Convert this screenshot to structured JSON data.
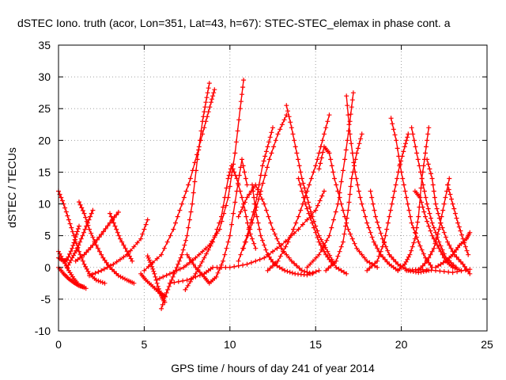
{
  "chart_data": {
    "type": "scatter",
    "title": "dSTEC Iono. truth (acor, Lon=351, Lat=43, h=67): STEC-STEC_elemax in phase cont. a",
    "xlabel": "GPS time / hours of day 241 of year 2014",
    "ylabel": "dSTEC  / TECUs",
    "xlim": [
      0,
      25
    ],
    "ylim": [
      -10,
      35
    ],
    "xticks": [
      0,
      5,
      10,
      15,
      20,
      25
    ],
    "yticks": [
      -10,
      -5,
      0,
      5,
      10,
      15,
      20,
      25,
      30,
      35
    ],
    "grid": true,
    "color": "#ff0000",
    "marker": "plus",
    "series": [
      {
        "points": [
          [
            0,
            12
          ],
          [
            0.3,
            10
          ],
          [
            0.6,
            7.5
          ],
          [
            0.9,
            5
          ],
          [
            1.2,
            2.5
          ],
          [
            1.5,
            0.5
          ],
          [
            1.8,
            -1
          ],
          [
            2.2,
            -2
          ],
          [
            2.7,
            -2.5
          ]
        ]
      },
      {
        "points": [
          [
            0,
            2.5
          ],
          [
            0.3,
            1
          ],
          [
            0.6,
            -0.5
          ],
          [
            0.9,
            -1.8
          ],
          [
            1.2,
            -2.8
          ],
          [
            1.6,
            -3.3
          ]
        ]
      },
      {
        "points": [
          [
            0,
            0
          ],
          [
            0.3,
            -1
          ],
          [
            0.6,
            -1.8
          ],
          [
            0.9,
            -2.4
          ],
          [
            1.2,
            -2.9
          ],
          [
            1.5,
            -3.1
          ]
        ]
      },
      {
        "points": [
          [
            0,
            1.5
          ],
          [
            0.3,
            1
          ],
          [
            0.5,
            1.2
          ],
          [
            0.8,
            3
          ],
          [
            1.0,
            4.8
          ],
          [
            1.2,
            6.5
          ]
        ]
      },
      {
        "points": [
          [
            0.5,
            0
          ],
          [
            0.8,
            1.5
          ],
          [
            1.1,
            3
          ],
          [
            1.4,
            5
          ],
          [
            1.7,
            7
          ],
          [
            2.0,
            9
          ]
        ]
      },
      {
        "points": [
          [
            1.2,
            10.3
          ],
          [
            1.5,
            8.5
          ],
          [
            1.8,
            6
          ],
          [
            2.2,
            3.5
          ],
          [
            2.6,
            1.5
          ],
          [
            3.0,
            0
          ],
          [
            3.5,
            -1.3
          ],
          [
            4.0,
            -2
          ],
          [
            4.4,
            -2.5
          ]
        ]
      },
      {
        "points": [
          [
            1.0,
            1
          ],
          [
            1.5,
            2
          ],
          [
            2.0,
            3.5
          ],
          [
            2.5,
            5.2
          ],
          [
            3.0,
            7
          ],
          [
            3.5,
            8.7
          ]
        ]
      },
      {
        "points": [
          [
            3.0,
            8.5
          ],
          [
            3.3,
            6.5
          ],
          [
            3.6,
            4.5
          ],
          [
            4.0,
            2.5
          ],
          [
            4.3,
            1
          ]
        ]
      },
      {
        "points": [
          [
            1.8,
            -1.3
          ],
          [
            2.5,
            -0.5
          ],
          [
            3.2,
            0.5
          ],
          [
            4.0,
            2
          ],
          [
            4.8,
            4.5
          ],
          [
            5.2,
            7.5
          ]
        ]
      },
      {
        "points": [
          [
            5.2,
            1.8
          ],
          [
            5.4,
            0.5
          ],
          [
            5.6,
            -1
          ],
          [
            5.8,
            -3
          ],
          [
            6.0,
            -4.5
          ],
          [
            6.2,
            -5.5
          ]
        ]
      },
      {
        "points": [
          [
            4.8,
            -1
          ],
          [
            5.1,
            -2
          ],
          [
            5.5,
            -3
          ],
          [
            5.9,
            -4
          ],
          [
            6.2,
            -4.5
          ]
        ]
      },
      {
        "points": [
          [
            6.0,
            -6.5
          ],
          [
            6.3,
            -4
          ],
          [
            6.6,
            -2
          ],
          [
            6.9,
            0
          ],
          [
            7.2,
            2
          ],
          [
            7.5,
            5
          ],
          [
            7.8,
            10
          ],
          [
            8.1,
            17
          ],
          [
            8.4,
            23
          ],
          [
            8.6,
            26
          ],
          [
            8.8,
            29
          ]
        ]
      },
      {
        "points": [
          [
            5.0,
            -0.5
          ],
          [
            6.0,
            2
          ],
          [
            6.7,
            6
          ],
          [
            7.2,
            10
          ],
          [
            7.7,
            14
          ],
          [
            8.2,
            19
          ],
          [
            8.6,
            23
          ],
          [
            8.9,
            26
          ],
          [
            9.1,
            28
          ]
        ]
      },
      {
        "points": [
          [
            5.7,
            -2
          ],
          [
            6.5,
            -1
          ],
          [
            7.3,
            0
          ],
          [
            8.0,
            1.5
          ],
          [
            8.8,
            3.5
          ],
          [
            9.4,
            6
          ],
          [
            9.9,
            11
          ],
          [
            10.3,
            18
          ],
          [
            10.6,
            25
          ],
          [
            10.8,
            29.5
          ]
        ]
      },
      {
        "points": [
          [
            7.4,
            -3.5
          ],
          [
            8.0,
            -1
          ],
          [
            8.5,
            1.5
          ],
          [
            9.0,
            4
          ],
          [
            9.5,
            8
          ],
          [
            9.9,
            14
          ],
          [
            10.1,
            16
          ],
          [
            10.4,
            14
          ],
          [
            10.8,
            10
          ],
          [
            11.1,
            6
          ],
          [
            11.5,
            3
          ]
        ]
      },
      {
        "points": [
          [
            6.5,
            -2.5
          ],
          [
            7.5,
            -2
          ],
          [
            8.5,
            -1
          ],
          [
            9.0,
            0
          ],
          [
            10.0,
            0
          ],
          [
            11.0,
            0.5
          ],
          [
            12.0,
            1.5
          ],
          [
            13.0,
            3.5
          ],
          [
            14.0,
            6
          ],
          [
            15.0,
            9
          ],
          [
            15.5,
            12
          ]
        ]
      },
      {
        "points": [
          [
            7.5,
            2
          ],
          [
            8.0,
            0
          ],
          [
            8.5,
            -1.5
          ],
          [
            8.8,
            -2.5
          ],
          [
            9.2,
            -1.5
          ],
          [
            9.6,
            1
          ],
          [
            10.0,
            5
          ],
          [
            10.4,
            12
          ],
          [
            10.7,
            17
          ],
          [
            11.0,
            13
          ]
        ]
      },
      {
        "points": [
          [
            10.5,
            8
          ],
          [
            11.0,
            11
          ],
          [
            11.5,
            13
          ],
          [
            12.0,
            10
          ],
          [
            12.5,
            6
          ],
          [
            13.0,
            3
          ],
          [
            13.6,
            1
          ],
          [
            14.2,
            -0.5
          ],
          [
            14.8,
            -1
          ]
        ]
      },
      {
        "points": [
          [
            11.3,
            13
          ],
          [
            11.5,
            9
          ],
          [
            11.8,
            5
          ],
          [
            12.2,
            2
          ],
          [
            12.6,
            0.5
          ],
          [
            13.2,
            -0.5
          ],
          [
            13.8,
            -1
          ],
          [
            14.5,
            -1.2
          ],
          [
            15.2,
            -0.5
          ]
        ]
      },
      {
        "points": [
          [
            10.5,
            1
          ],
          [
            11.0,
            5
          ],
          [
            11.5,
            10
          ],
          [
            11.9,
            16
          ],
          [
            12.2,
            19
          ],
          [
            12.5,
            22
          ]
        ]
      },
      {
        "points": [
          [
            10.8,
            3
          ],
          [
            11.3,
            7
          ],
          [
            11.8,
            12
          ],
          [
            12.3,
            17
          ],
          [
            12.8,
            21
          ],
          [
            13.3,
            24
          ]
        ]
      },
      {
        "points": [
          [
            13.3,
            25.5
          ],
          [
            13.6,
            22
          ],
          [
            13.9,
            18
          ],
          [
            14.2,
            14
          ],
          [
            14.5,
            11
          ],
          [
            14.8,
            8
          ],
          [
            15.2,
            5
          ],
          [
            15.7,
            2.5
          ],
          [
            16.2,
            0
          ],
          [
            16.8,
            -1
          ]
        ]
      },
      {
        "points": [
          [
            14.0,
            14
          ],
          [
            14.4,
            10
          ],
          [
            14.8,
            7
          ],
          [
            15.2,
            4
          ],
          [
            15.6,
            2
          ],
          [
            16.0,
            0.5
          ]
        ]
      },
      {
        "points": [
          [
            12.2,
            -0.5
          ],
          [
            12.8,
            1
          ],
          [
            13.4,
            4
          ],
          [
            14.0,
            8
          ],
          [
            14.5,
            12
          ],
          [
            15.0,
            16
          ],
          [
            15.4,
            20
          ],
          [
            15.8,
            24
          ]
        ]
      },
      {
        "points": [
          [
            15.2,
            15.5
          ],
          [
            15.5,
            19
          ],
          [
            15.8,
            18
          ],
          [
            16.1,
            14
          ],
          [
            16.5,
            10
          ],
          [
            16.9,
            6
          ],
          [
            17.4,
            3
          ],
          [
            18.0,
            1
          ],
          [
            18.6,
            0
          ]
        ]
      },
      {
        "points": [
          [
            15.6,
            -0.5
          ],
          [
            16.2,
            1
          ],
          [
            16.6,
            4
          ],
          [
            16.9,
            9
          ],
          [
            17.1,
            14
          ],
          [
            17.4,
            18
          ],
          [
            17.7,
            21
          ]
        ]
      },
      {
        "points": [
          [
            14.5,
            0
          ],
          [
            15.2,
            2
          ],
          [
            15.8,
            5
          ],
          [
            16.3,
            10
          ],
          [
            16.7,
            17
          ],
          [
            17.0,
            23
          ],
          [
            17.2,
            27.5
          ]
        ]
      },
      {
        "points": [
          [
            16.8,
            27
          ],
          [
            17.0,
            21
          ],
          [
            17.3,
            15
          ],
          [
            17.6,
            11
          ],
          [
            18.0,
            7
          ],
          [
            18.4,
            4
          ],
          [
            18.8,
            2
          ],
          [
            19.3,
            0.5
          ],
          [
            19.8,
            -0.5
          ]
        ]
      },
      {
        "points": [
          [
            18.0,
            -0.5
          ],
          [
            18.6,
            1
          ],
          [
            19.0,
            4
          ],
          [
            19.3,
            8
          ],
          [
            19.6,
            12
          ],
          [
            19.9,
            16
          ],
          [
            20.2,
            19
          ],
          [
            20.4,
            21
          ]
        ]
      },
      {
        "points": [
          [
            19.4,
            23.5
          ],
          [
            19.7,
            20
          ],
          [
            20.0,
            15
          ],
          [
            20.3,
            11
          ],
          [
            20.6,
            7
          ],
          [
            21.0,
            4
          ],
          [
            21.4,
            1.5
          ],
          [
            21.8,
            0
          ]
        ]
      },
      {
        "points": [
          [
            19.8,
            -0.5
          ],
          [
            20.2,
            0.5
          ],
          [
            20.5,
            2
          ],
          [
            20.8,
            4.5
          ],
          [
            21.0,
            8
          ],
          [
            21.2,
            14
          ],
          [
            21.4,
            18
          ],
          [
            21.6,
            22
          ]
        ]
      },
      {
        "points": [
          [
            20.6,
            22
          ],
          [
            20.9,
            18
          ],
          [
            21.2,
            14
          ],
          [
            21.5,
            10
          ],
          [
            21.8,
            7
          ],
          [
            22.2,
            4
          ],
          [
            22.6,
            1.5
          ],
          [
            23.2,
            0
          ]
        ]
      },
      {
        "points": [
          [
            18.2,
            12
          ],
          [
            18.5,
            8
          ],
          [
            18.9,
            4.5
          ],
          [
            19.3,
            2
          ],
          [
            19.8,
            0.5
          ],
          [
            20.4,
            -0.5
          ],
          [
            21.0,
            -0.8
          ],
          [
            21.6,
            -0.5
          ]
        ]
      },
      {
        "points": [
          [
            20.8,
            12
          ],
          [
            21.1,
            11
          ],
          [
            21.4,
            8
          ],
          [
            21.8,
            5
          ],
          [
            22.2,
            3
          ],
          [
            22.6,
            1
          ],
          [
            23.0,
            0
          ],
          [
            23.5,
            -0.5
          ]
        ]
      },
      {
        "points": [
          [
            21.5,
            17
          ],
          [
            21.8,
            14
          ],
          [
            22.0,
            10
          ],
          [
            22.3,
            7
          ],
          [
            22.7,
            4
          ],
          [
            23.1,
            2
          ],
          [
            23.6,
            0.5
          ],
          [
            24.0,
            -1
          ]
        ]
      },
      {
        "points": [
          [
            21.0,
            -0.5
          ],
          [
            21.5,
            1
          ],
          [
            21.9,
            3
          ],
          [
            22.2,
            6
          ],
          [
            22.5,
            10
          ],
          [
            22.8,
            14
          ]
        ]
      },
      {
        "points": [
          [
            22.7,
            13
          ],
          [
            23.0,
            10
          ],
          [
            23.3,
            7
          ],
          [
            23.6,
            4.5
          ],
          [
            23.9,
            2
          ]
        ]
      },
      {
        "points": [
          [
            22.0,
            0
          ],
          [
            22.6,
            1
          ],
          [
            23.0,
            2
          ],
          [
            23.4,
            3.5
          ],
          [
            23.8,
            4.5
          ],
          [
            24.0,
            5.5
          ]
        ]
      },
      {
        "points": [
          [
            20.3,
            -0.5
          ],
          [
            21.0,
            -0.3
          ],
          [
            22.0,
            -0.5
          ],
          [
            23.0,
            -0.8
          ],
          [
            24.0,
            -0.3
          ]
        ]
      }
    ]
  }
}
